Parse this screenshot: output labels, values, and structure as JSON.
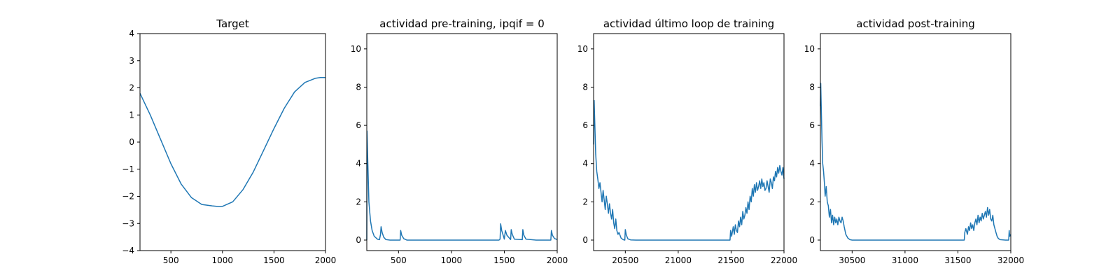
{
  "chart_data": [
    {
      "type": "line",
      "title": "Target",
      "xlabel": "",
      "ylabel": "",
      "xlim": [
        200,
        2000
      ],
      "ylim": [
        -4,
        4
      ],
      "xticks": [
        500,
        1000,
        1500,
        2000
      ],
      "yticks": [
        -4,
        -3,
        -2,
        -1,
        0,
        1,
        2,
        3,
        4
      ],
      "grid": false,
      "series": [
        {
          "color": "#1f77b4",
          "x": [
            200,
            300,
            400,
            500,
            600,
            700,
            800,
            900,
            975,
            1000,
            1100,
            1200,
            1300,
            1400,
            1500,
            1600,
            1700,
            1800,
            1900,
            1950,
            2000
          ],
          "y": [
            1.8,
            1.0,
            0.1,
            -0.8,
            -1.55,
            -2.05,
            -2.3,
            -2.35,
            -2.38,
            -2.37,
            -2.2,
            -1.75,
            -1.1,
            -0.3,
            0.5,
            1.25,
            1.85,
            2.2,
            2.35,
            2.38,
            2.38
          ]
        }
      ]
    },
    {
      "type": "line",
      "title": "actividad pre-training, ipqif = 0",
      "xlabel": "",
      "ylabel": "",
      "xlim": [
        200,
        2000
      ],
      "ylim": [
        -0.55,
        10.8
      ],
      "xticks": [
        500,
        1000,
        1500,
        2000
      ],
      "yticks": [
        0,
        2,
        4,
        6,
        8,
        10
      ],
      "grid": false,
      "series": [
        {
          "color": "#1f77b4",
          "x": [
            200,
            202,
            210,
            220,
            235,
            250,
            270,
            300,
            320,
            330,
            335,
            345,
            360,
            380,
            420,
            500,
            515,
            520,
            530,
            550,
            580,
            700,
            900,
            1100,
            1300,
            1450,
            1460,
            1465,
            1475,
            1495,
            1500,
            1510,
            1525,
            1560,
            1565,
            1575,
            1595,
            1670,
            1675,
            1685,
            1705,
            1800,
            1940,
            1945,
            1955,
            1975,
            2000
          ],
          "y": [
            0,
            5.7,
            4.0,
            2.0,
            1.0,
            0.5,
            0.2,
            0.05,
            0.02,
            0.3,
            0.7,
            0.4,
            0.15,
            0.03,
            0.0,
            0.0,
            0.0,
            0.5,
            0.25,
            0.07,
            0.0,
            0.0,
            0.0,
            0.0,
            0.0,
            0.0,
            0.05,
            0.85,
            0.5,
            0.15,
            0.05,
            0.5,
            0.25,
            0.03,
            0.55,
            0.3,
            0.05,
            0.02,
            0.55,
            0.25,
            0.05,
            0.0,
            0.0,
            0.5,
            0.25,
            0.08,
            0.03
          ]
        }
      ]
    },
    {
      "type": "line",
      "title": "actividad último loop de training",
      "xlabel": "",
      "ylabel": "",
      "xlim": [
        20200,
        22000
      ],
      "ylim": [
        -0.55,
        10.8
      ],
      "xticks": [
        20500,
        21000,
        21500,
        22000
      ],
      "yticks": [
        0,
        2,
        4,
        6,
        8,
        10
      ],
      "grid": false,
      "series": [
        {
          "color": "#1f77b4",
          "x": [
            20200,
            20205,
            20212,
            20220,
            20230,
            20240,
            20250,
            20260,
            20270,
            20280,
            20290,
            20300,
            20310,
            20320,
            20330,
            20340,
            20350,
            20360,
            20370,
            20380,
            20390,
            20400,
            20410,
            20420,
            20430,
            20440,
            20460,
            20480,
            20495,
            20500,
            20510,
            20525,
            20550,
            20600,
            20800,
            21000,
            21200,
            21400,
            21490,
            21495,
            21505,
            21520,
            21530,
            21540,
            21550,
            21560,
            21570,
            21580,
            21590,
            21600,
            21610,
            21620,
            21630,
            21640,
            21650,
            21660,
            21670,
            21680,
            21690,
            21700,
            21710,
            21720,
            21730,
            21740,
            21750,
            21760,
            21770,
            21780,
            21790,
            21800,
            21810,
            21820,
            21830,
            21840,
            21850,
            21860,
            21870,
            21880,
            21890,
            21900,
            21910,
            21920,
            21930,
            21940,
            21950,
            21960,
            21970,
            21980,
            21990,
            22000
          ],
          "y": [
            5.0,
            7.3,
            6.0,
            4.5,
            3.6,
            3.2,
            2.7,
            3.0,
            2.5,
            2.0,
            2.6,
            2.1,
            1.6,
            2.3,
            1.9,
            1.4,
            1.9,
            1.4,
            1.1,
            1.6,
            0.9,
            0.6,
            1.1,
            0.5,
            0.3,
            0.4,
            0.1,
            0.02,
            0.0,
            0.55,
            0.25,
            0.06,
            0.01,
            0.0,
            0.0,
            0.0,
            0.0,
            0.0,
            0.0,
            0.5,
            0.2,
            0.7,
            0.3,
            0.8,
            0.5,
            0.4,
            1.0,
            0.7,
            1.2,
            0.8,
            1.5,
            1.1,
            1.3,
            1.7,
            1.4,
            2.0,
            1.6,
            2.3,
            2.0,
            2.7,
            2.3,
            2.9,
            2.5,
            3.0,
            2.6,
            2.8,
            3.1,
            2.7,
            3.2,
            2.8,
            3.0,
            2.6,
            2.7,
            3.1,
            2.8,
            2.5,
            3.2,
            3.0,
            2.7,
            3.3,
            3.1,
            3.6,
            3.3,
            3.8,
            3.5,
            3.9,
            3.6,
            3.4,
            3.8,
            3.2
          ]
        }
      ]
    },
    {
      "type": "line",
      "title": "actividad post-training",
      "xlabel": "",
      "ylabel": "",
      "xlim": [
        30200,
        32000
      ],
      "ylim": [
        -0.55,
        10.8
      ],
      "xticks": [
        30500,
        31000,
        31500,
        32000
      ],
      "yticks": [
        0,
        2,
        4,
        6,
        8,
        10
      ],
      "grid": false,
      "series": [
        {
          "color": "#1f77b4",
          "x": [
            30200,
            30203,
            30208,
            30215,
            30222,
            30230,
            30238,
            30245,
            30255,
            30265,
            30275,
            30285,
            30295,
            30305,
            30315,
            30325,
            30335,
            30345,
            30355,
            30365,
            30375,
            30385,
            30395,
            30405,
            30415,
            30425,
            30440,
            30460,
            30480,
            30500,
            30550,
            30700,
            30900,
            31100,
            31300,
            31500,
            31560,
            31565,
            31575,
            31590,
            31600,
            31610,
            31620,
            31630,
            31640,
            31650,
            31660,
            31670,
            31680,
            31690,
            31700,
            31710,
            31720,
            31730,
            31740,
            31750,
            31760,
            31770,
            31780,
            31790,
            31800,
            31810,
            31820,
            31830,
            31840,
            31850,
            31860,
            31870,
            31880,
            31890,
            31900,
            31950,
            31980,
            31985,
            31990,
            32000
          ],
          "y": [
            7.0,
            8.2,
            7.0,
            5.2,
            4.0,
            3.6,
            3.0,
            2.3,
            2.8,
            2.0,
            1.8,
            1.2,
            1.6,
            0.9,
            1.3,
            0.8,
            1.2,
            0.9,
            1.1,
            0.8,
            1.2,
            1.0,
            0.9,
            1.2,
            1.0,
            0.7,
            0.3,
            0.1,
            0.02,
            0.0,
            0.0,
            0.0,
            0.0,
            0.0,
            0.0,
            0.0,
            0.0,
            0.4,
            0.6,
            0.3,
            0.7,
            0.5,
            0.9,
            0.6,
            0.8,
            0.5,
            0.9,
            1.1,
            0.8,
            1.3,
            0.9,
            1.2,
            1.0,
            1.4,
            1.1,
            1.3,
            1.5,
            1.2,
            1.7,
            1.3,
            1.6,
            1.1,
            1.0,
            1.3,
            0.8,
            0.6,
            0.4,
            0.2,
            0.1,
            0.05,
            0.02,
            0.0,
            0.0,
            0.5,
            0.2,
            0.3
          ]
        }
      ]
    }
  ]
}
